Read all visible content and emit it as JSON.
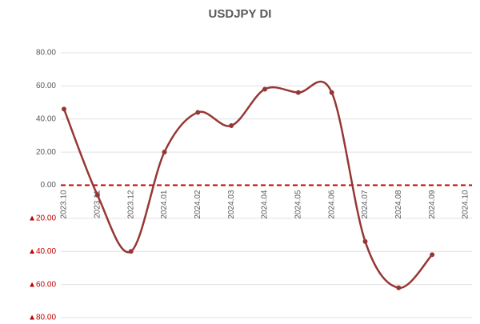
{
  "chart_data": {
    "type": "line",
    "title": "USDJPY DI",
    "categories": [
      "2023.10",
      "2023.11",
      "2023.12",
      "2024.01",
      "2024.02",
      "2024.03",
      "2024.04",
      "2024.05",
      "2024.06",
      "2024.07",
      "2024.08",
      "2024.09",
      "2024.10"
    ],
    "series": [
      {
        "name": "USDJPY DI",
        "color": "#953735",
        "values": [
          46,
          -6,
          -40,
          20,
          44,
          36,
          58,
          56,
          56,
          -34,
          -62,
          -42,
          null
        ]
      }
    ],
    "ylim": [
      -80,
      80
    ],
    "yticks": [
      {
        "value": 80,
        "label": "80.00"
      },
      {
        "value": 60,
        "label": "60.00"
      },
      {
        "value": 40,
        "label": "40.00"
      },
      {
        "value": 20,
        "label": "20.00"
      },
      {
        "value": 0,
        "label": "0.00"
      },
      {
        "value": -20,
        "label": "▲20.00"
      },
      {
        "value": -40,
        "label": "▲40.00"
      },
      {
        "value": -60,
        "label": "▲60.00"
      },
      {
        "value": -80,
        "label": "▲80.00"
      }
    ],
    "grid": true
  }
}
